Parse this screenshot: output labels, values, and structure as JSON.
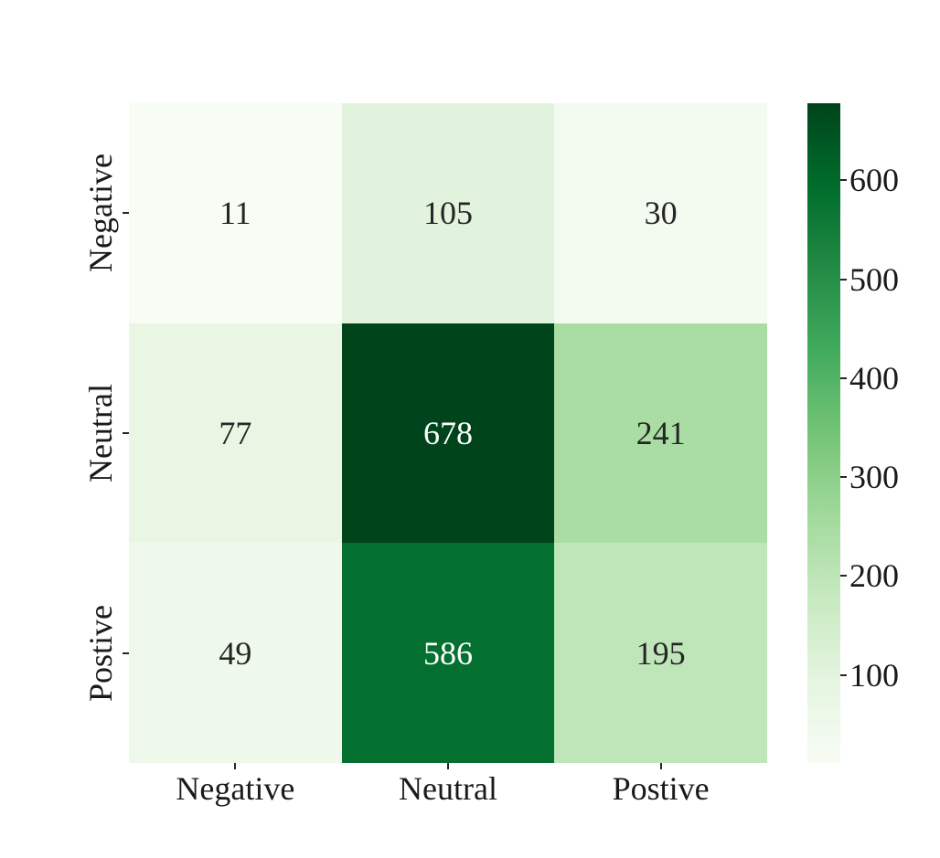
{
  "chart_data": {
    "type": "heatmap",
    "title": "",
    "xlabel": "",
    "ylabel": "",
    "x_categories": [
      "Negative",
      "Neutral",
      "Postive"
    ],
    "y_categories": [
      "Negative",
      "Neutral",
      "Postive"
    ],
    "values": [
      [
        11,
        105,
        30
      ],
      [
        77,
        678,
        241
      ],
      [
        49,
        586,
        195
      ]
    ],
    "vmin": 11,
    "vmax": 678,
    "colormap": "Greens",
    "colormap_anchors": [
      "#f7fcf5",
      "#e5f5e0",
      "#c7e9c0",
      "#a1d99b",
      "#74c476",
      "#41ab5d",
      "#238b45",
      "#006d2c",
      "#00441b"
    ],
    "colorbar_ticks": [
      100,
      200,
      300,
      400,
      500,
      600
    ],
    "legend_position": "right",
    "grid": false,
    "annotation_color_dark": "#262626",
    "annotation_color_light": "#ffffff",
    "tick_color": "#262626",
    "background_color": "#ffffff"
  }
}
